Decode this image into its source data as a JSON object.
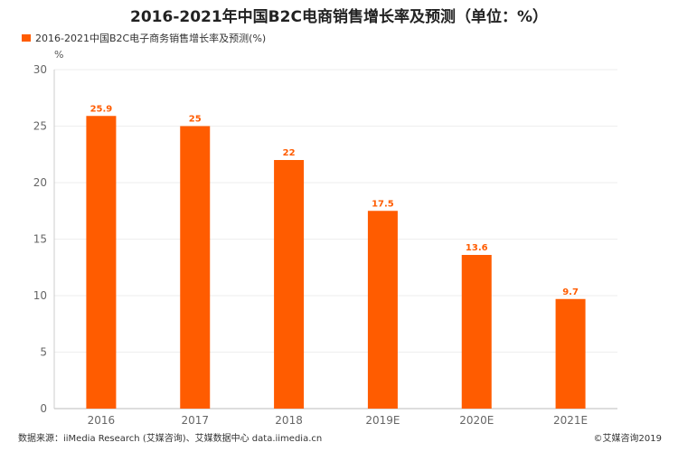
{
  "chart_data": {
    "type": "bar",
    "title": "2016-2021年中国B2C电商销售增长率及预测（单位：%）",
    "legend": "2016-2021中国B2C电子商务销售增长率及预测(%)",
    "unit_label": "%",
    "categories": [
      "2016",
      "2017",
      "2018",
      "2019E",
      "2020E",
      "2021E"
    ],
    "values": [
      25.9,
      25,
      22,
      17.5,
      13.6,
      9.7
    ],
    "value_labels": [
      "25.9",
      "25",
      "22",
      "17.5",
      "13.6",
      "9.7"
    ],
    "ylim": [
      0,
      30
    ],
    "yticks": [
      "0",
      "5",
      "10",
      "15",
      "20",
      "25",
      "30"
    ],
    "xlabel": "",
    "ylabel": "",
    "grid": true,
    "bar_color": "#ff5c00"
  },
  "footer": {
    "source": "数据来源：iiMedia Research (艾媒咨询)、艾媒数据中心 data.iimedia.cn",
    "copyright": "©艾媒咨询2019"
  }
}
